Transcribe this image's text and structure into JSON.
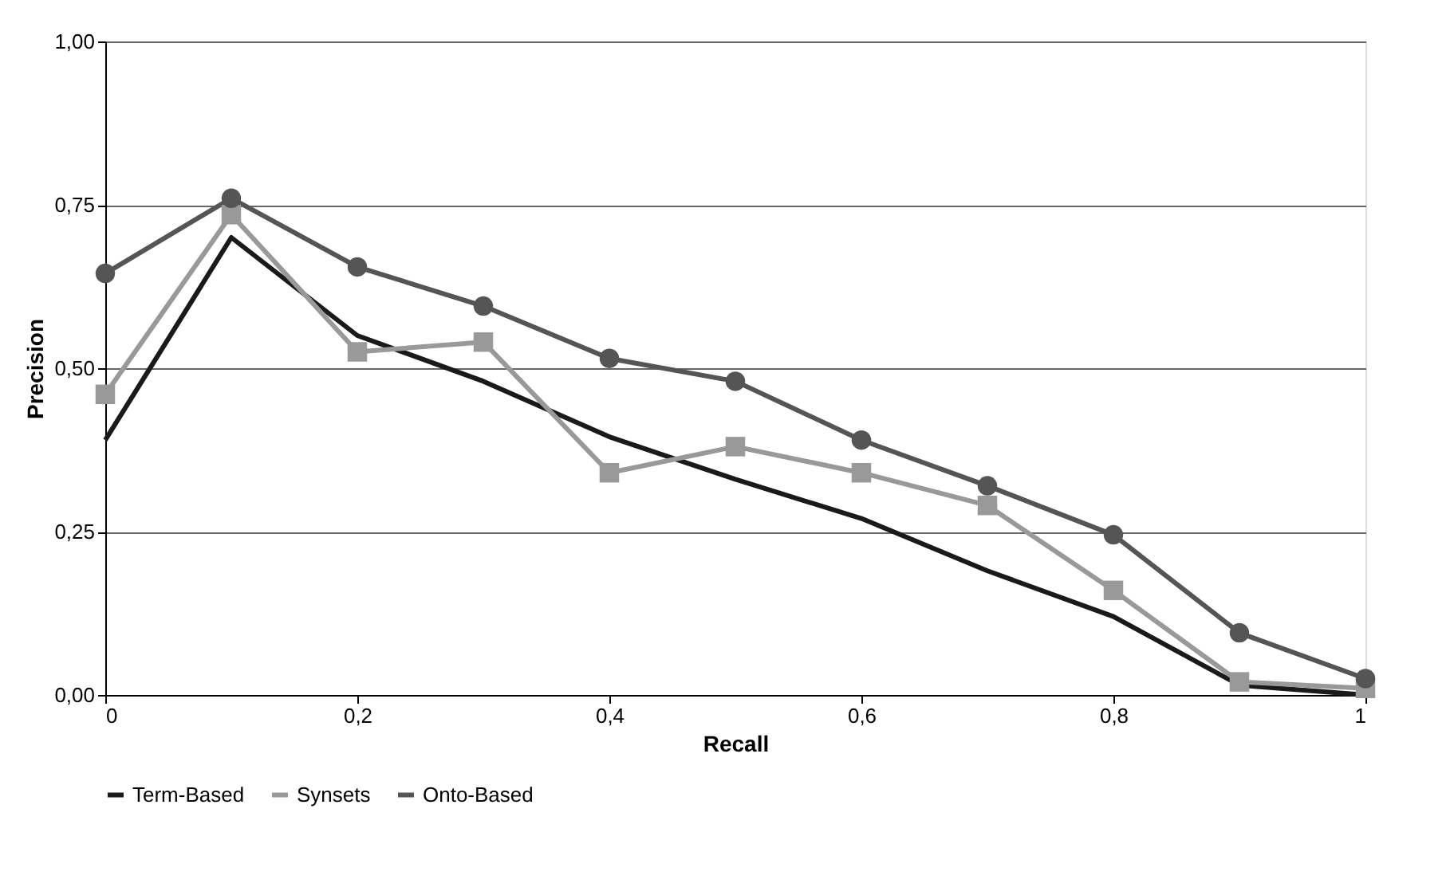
{
  "chart_data": {
    "type": "line",
    "xlabel": "Recall",
    "ylabel": "Precision",
    "x": [
      0,
      0.1,
      0.2,
      0.3,
      0.4,
      0.5,
      0.6,
      0.7,
      0.8,
      0.9,
      1
    ],
    "series": [
      {
        "name": "Term-Based",
        "color": "#1a1a1a",
        "marker": "none",
        "values": [
          0.39,
          0.7,
          0.55,
          0.48,
          0.395,
          0.33,
          0.27,
          0.19,
          0.12,
          0.015,
          0.0
        ]
      },
      {
        "name": "Synsets",
        "color": "#999999",
        "marker": "square",
        "values": [
          0.46,
          0.735,
          0.525,
          0.54,
          0.34,
          0.38,
          0.34,
          0.29,
          0.16,
          0.02,
          0.01
        ]
      },
      {
        "name": "Onto-Based",
        "color": "#555555",
        "marker": "circle",
        "values": [
          0.645,
          0.76,
          0.655,
          0.595,
          0.515,
          0.48,
          0.39,
          0.32,
          0.245,
          0.095,
          0.025
        ]
      }
    ],
    "xlim": [
      0,
      1
    ],
    "xticks": [
      0,
      {
        "value": 0.2,
        "label": "0,2"
      },
      {
        "value": 0.4,
        "label": "0,4"
      },
      {
        "value": 0.6,
        "label": "0,6"
      },
      {
        "value": 0.8,
        "label": "0,8"
      },
      1
    ],
    "ylim": [
      0,
      1
    ],
    "yticks": [
      {
        "value": 0,
        "label": "0,00"
      },
      {
        "value": 0.25,
        "label": "0,25"
      },
      {
        "value": 0.5,
        "label": "0,50"
      },
      {
        "value": 0.75,
        "label": "0,75"
      },
      {
        "value": 1,
        "label": "1,00"
      }
    ],
    "grid": "y",
    "legend": "bottom",
    "line_style": "solid"
  }
}
